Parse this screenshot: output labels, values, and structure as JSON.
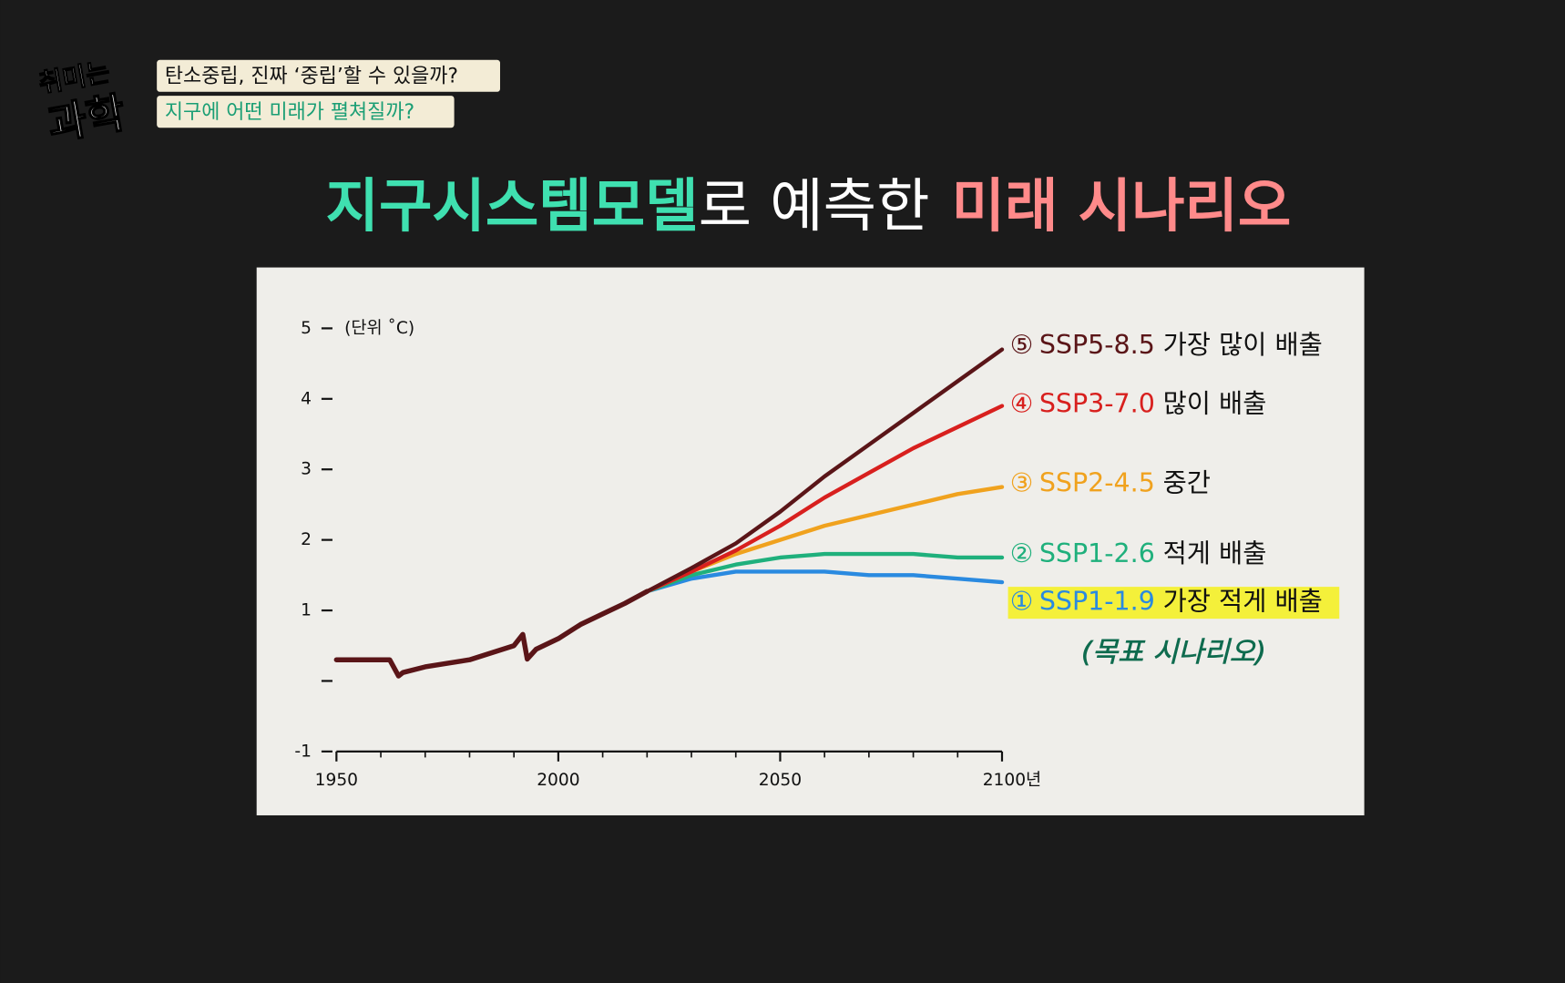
{
  "header": {
    "logo": [
      "취미는",
      "과학"
    ],
    "headlines": [
      "탄소중립, 진짜 ‘중립’할 수 있을까?",
      "지구에 어떤 미래가 펼쳐질까?"
    ],
    "title": [
      "지구시스템모델",
      "로 예측한",
      "미래 시나리오"
    ]
  },
  "chart_data": {
    "type": "line",
    "y_label": "(단위 ˚C)",
    "xlim": [
      1950,
      2100
    ],
    "ylim": [
      -1,
      5
    ],
    "xticks": [
      1950,
      2000,
      2050,
      {
        "value": 2100,
        "label": "2100년"
      }
    ],
    "xminorticks": [
      1960,
      1970,
      1980,
      1990,
      2010,
      2020,
      2030,
      2040,
      2060,
      2070,
      2080,
      2090
    ],
    "yticks": [
      -1,
      {
        "value": 0,
        "label": null
      },
      1,
      2,
      3,
      4,
      5
    ],
    "series": [
      {
        "color": "#5a1518",
        "x": [
          1950,
          1955,
          1962,
          1964,
          1965,
          1970,
          1975,
          1980,
          1985,
          1990,
          1992,
          1993,
          1995,
          2000,
          2005,
          2010,
          2015,
          2020
        ],
        "values": [
          0.3,
          0.3,
          0.3,
          0.07,
          0.12,
          0.2,
          0.25,
          0.3,
          0.4,
          0.5,
          0.66,
          0.31,
          0.45,
          0.6,
          0.8,
          0.95,
          1.1,
          1.27
        ]
      },
      {
        "marker": "⑤",
        "name": "SSP5-8.5",
        "desc": "가장 많이 배출",
        "color": "#5a1518",
        "x": [
          2020,
          2030,
          2040,
          2050,
          2060,
          2070,
          2080,
          2090,
          2100
        ],
        "values": [
          1.27,
          1.6,
          1.95,
          2.4,
          2.9,
          3.35,
          3.8,
          4.25,
          4.7
        ]
      },
      {
        "marker": "④",
        "name": "SSP3-7.0",
        "desc": "많이 배출",
        "color": "#d8201e",
        "x": [
          2020,
          2030,
          2040,
          2050,
          2060,
          2070,
          2080,
          2090,
          2100
        ],
        "values": [
          1.27,
          1.55,
          1.85,
          2.2,
          2.6,
          2.95,
          3.3,
          3.6,
          3.9
        ]
      },
      {
        "marker": "③",
        "name": "SSP2-4.5",
        "desc": "중간",
        "color": "#f0a21e",
        "x": [
          2020,
          2030,
          2040,
          2050,
          2060,
          2070,
          2080,
          2090,
          2100
        ],
        "values": [
          1.27,
          1.55,
          1.8,
          2.0,
          2.2,
          2.35,
          2.5,
          2.65,
          2.75
        ]
      },
      {
        "marker": "②",
        "name": "SSP1-2.6",
        "desc": "적게 배출",
        "color": "#1fb07c",
        "x": [
          2020,
          2030,
          2040,
          2050,
          2060,
          2070,
          2080,
          2090,
          2100
        ],
        "values": [
          1.27,
          1.5,
          1.65,
          1.75,
          1.8,
          1.8,
          1.8,
          1.75,
          1.75
        ]
      },
      {
        "marker": "①",
        "name": "SSP1-1.9",
        "desc": "가장 적게 배출",
        "color": "#2a8ae0",
        "x": [
          2020,
          2030,
          2040,
          2050,
          2060,
          2070,
          2080,
          2090,
          2100
        ],
        "values": [
          1.27,
          1.45,
          1.55,
          1.55,
          1.55,
          1.5,
          1.5,
          1.45,
          1.4
        ]
      }
    ],
    "annotation": "(목표 시나리오)"
  }
}
